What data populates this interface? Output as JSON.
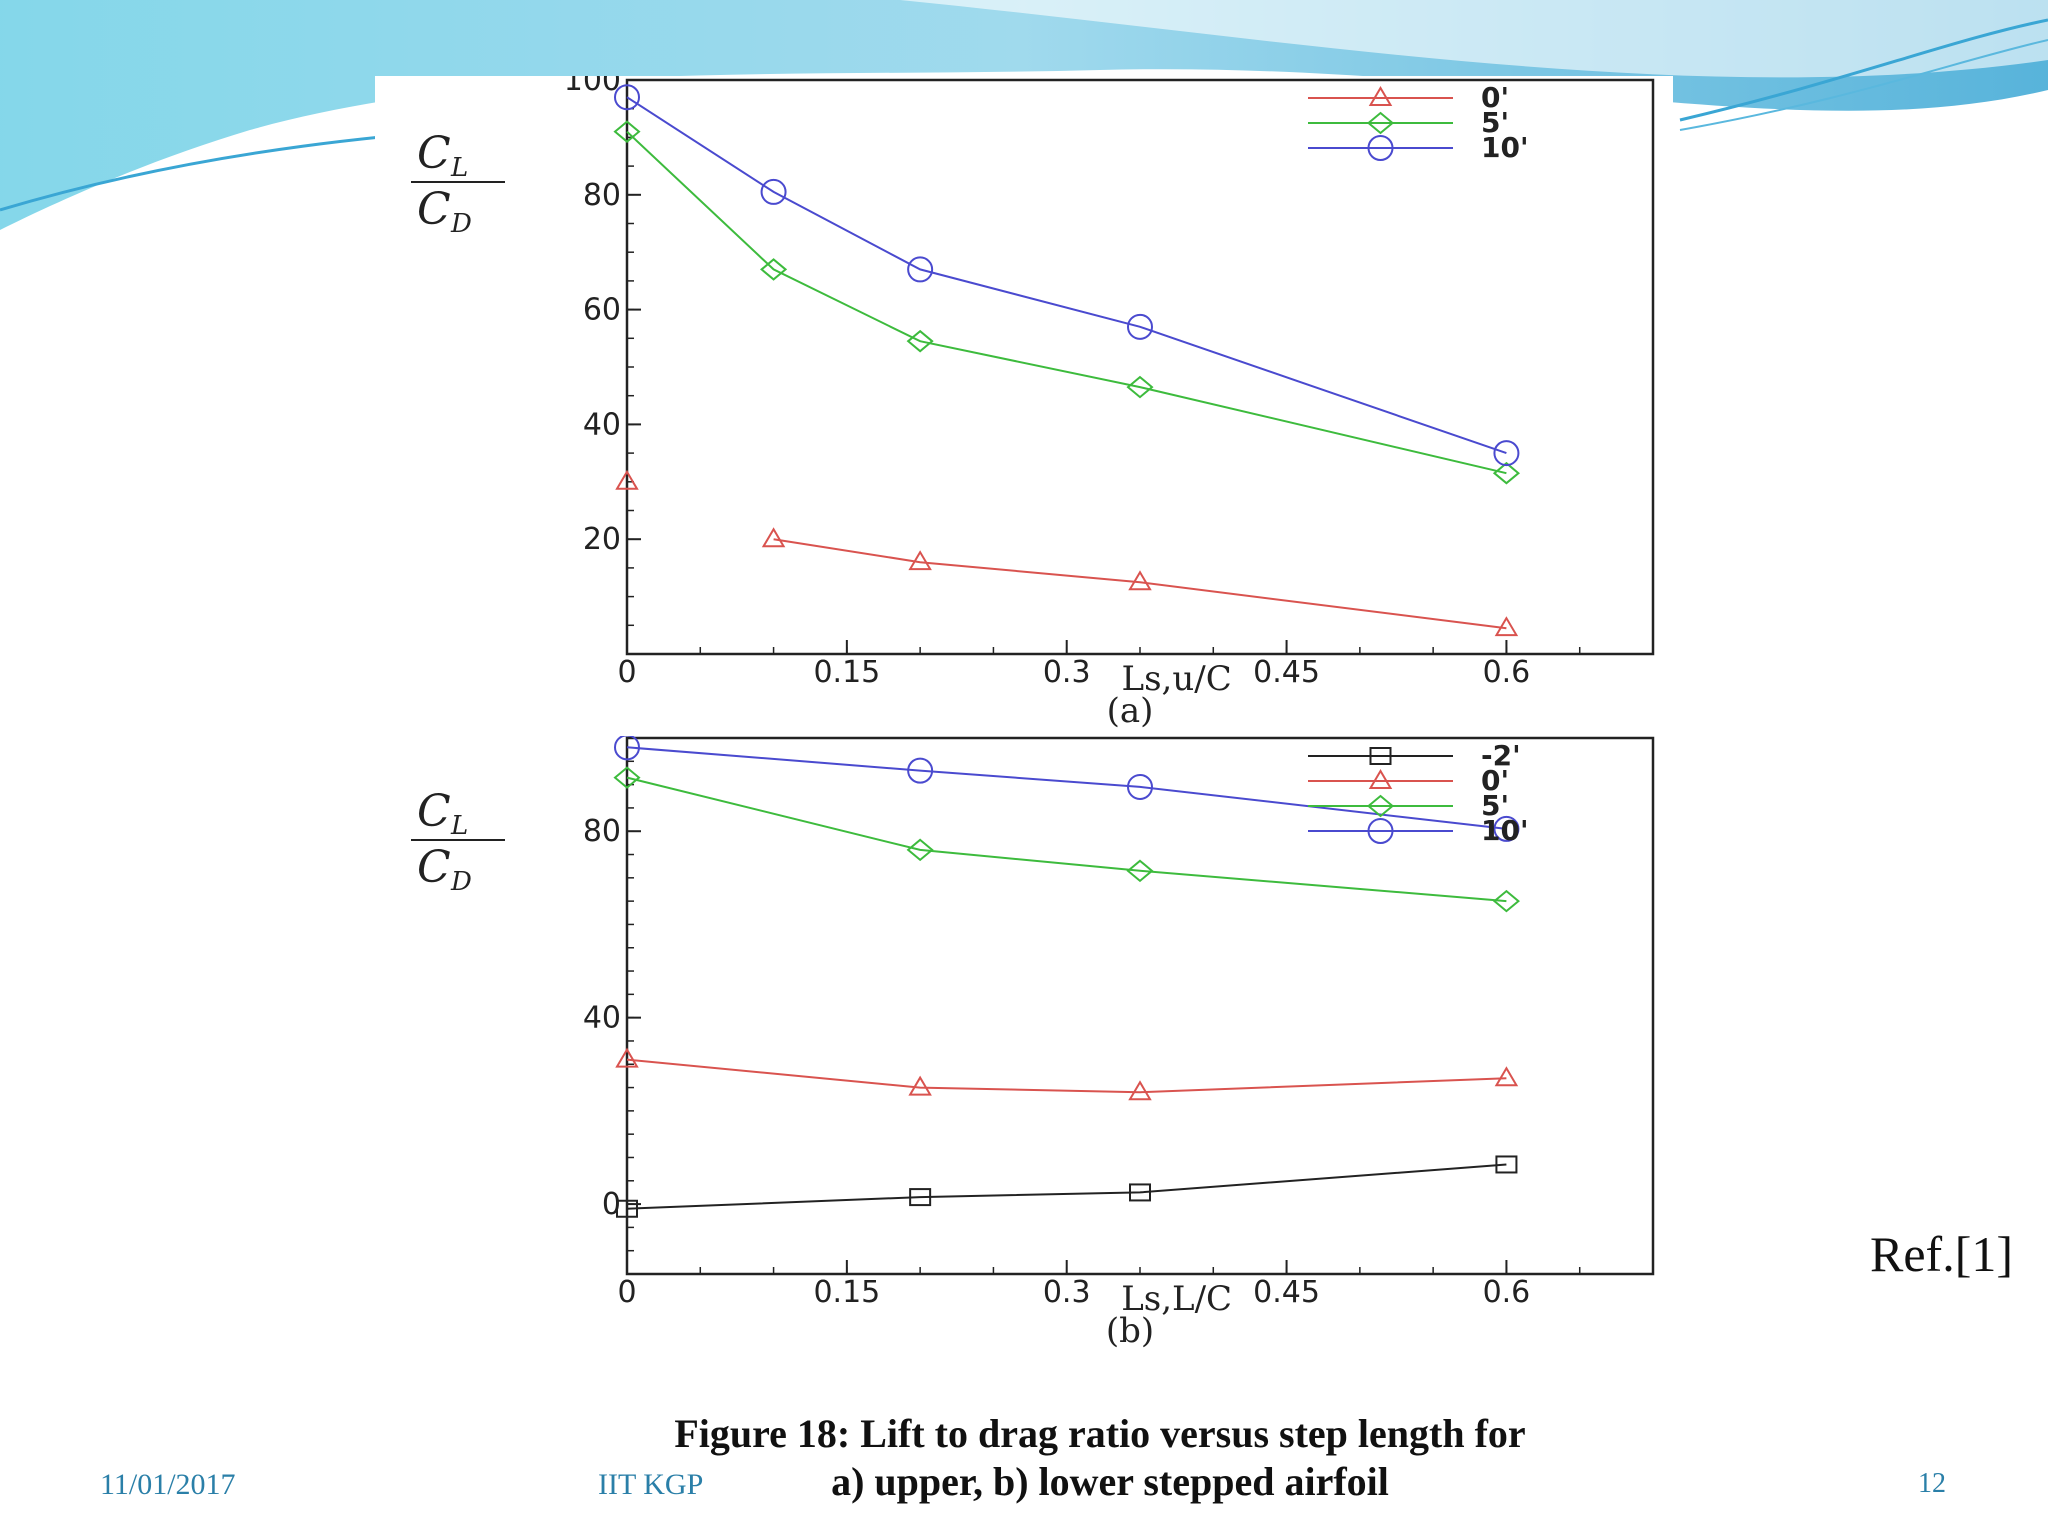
{
  "slide": {
    "caption_line1": "Figure 18: Lift to drag ratio versus step length for",
    "caption_line2": "a) upper, b) lower stepped airfoil",
    "reference": "Ref.[1]",
    "date": "11/01/2017",
    "organization": "IIT KGP",
    "page_number": "12"
  },
  "chart_data": [
    {
      "type": "line",
      "panel_label": "(a)",
      "ylabel": "CL/CD",
      "xlabel": "Ls,u/C",
      "xlim": [
        0,
        0.7
      ],
      "ylim": [
        0,
        100
      ],
      "xticks": [
        0,
        0.15,
        0.3,
        0.45,
        0.6
      ],
      "yticks": [
        20,
        40,
        60,
        80,
        100
      ],
      "legend_position": "top-right",
      "series": [
        {
          "name": "0'",
          "color": "#d9534f",
          "marker": "triangle",
          "points": [
            [
              0,
              30
            ],
            [
              0.1,
              20
            ],
            [
              0.2,
              16
            ],
            [
              0.35,
              12.5
            ],
            [
              0.6,
              4.5
            ]
          ],
          "connect_from": 1
        },
        {
          "name": "5'",
          "color": "#3dbb3d",
          "marker": "diamond",
          "points": [
            [
              0,
              91
            ],
            [
              0.1,
              67
            ],
            [
              0.2,
              54.5
            ],
            [
              0.35,
              46.5
            ],
            [
              0.6,
              31.5
            ]
          ],
          "connect_from": 0
        },
        {
          "name": "10'",
          "color": "#4a4acf",
          "marker": "circle",
          "points": [
            [
              0,
              97
            ],
            [
              0.1,
              80.5
            ],
            [
              0.2,
              67
            ],
            [
              0.35,
              57
            ],
            [
              0.6,
              35
            ]
          ],
          "connect_from": 0
        }
      ]
    },
    {
      "type": "line",
      "panel_label": "(b)",
      "ylabel": "CL/CD",
      "xlabel": "Ls,L/C",
      "xlim": [
        0,
        0.7
      ],
      "ylim": [
        -15,
        100
      ],
      "xticks": [
        0,
        0.15,
        0.3,
        0.45,
        0.6
      ],
      "yticks": [
        0,
        40,
        80
      ],
      "legend_position": "top-right",
      "series": [
        {
          "name": "-2'",
          "color": "#222222",
          "marker": "square",
          "points": [
            [
              0,
              -1
            ],
            [
              0.2,
              1.5
            ],
            [
              0.35,
              2.5
            ],
            [
              0.6,
              8.5
            ]
          ],
          "connect_from": 0
        },
        {
          "name": "0'",
          "color": "#d9534f",
          "marker": "triangle",
          "points": [
            [
              0,
              31
            ],
            [
              0.2,
              25
            ],
            [
              0.35,
              24
            ],
            [
              0.6,
              27
            ]
          ],
          "connect_from": 0
        },
        {
          "name": "5'",
          "color": "#3dbb3d",
          "marker": "diamond",
          "points": [
            [
              0,
              91.5
            ],
            [
              0.2,
              76
            ],
            [
              0.35,
              71.5
            ],
            [
              0.6,
              65
            ]
          ],
          "connect_from": 0
        },
        {
          "name": "10'",
          "color": "#4a4acf",
          "marker": "circle",
          "points": [
            [
              0,
              98
            ],
            [
              0.2,
              93
            ],
            [
              0.35,
              89.5
            ],
            [
              0.6,
              80.5
            ]
          ],
          "connect_from": 0
        }
      ]
    }
  ]
}
